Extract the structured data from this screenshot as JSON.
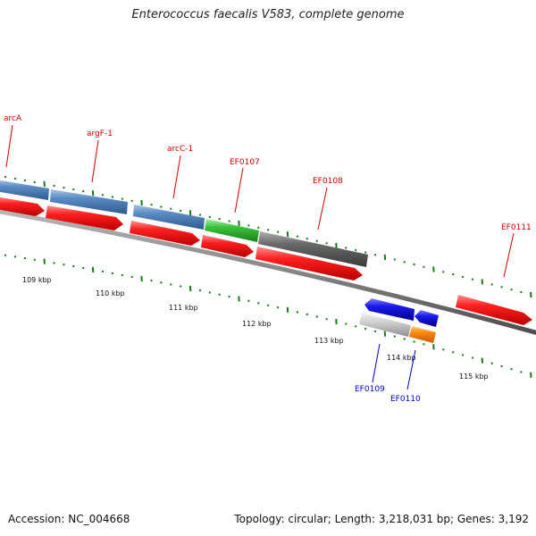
{
  "header": {
    "title": "Enterococcus faecalis V583, complete genome"
  },
  "footer": {
    "accession": "Accession: NC_004668",
    "topology": "Topology: circular; Length: 3,218,031 bp; Genes: 3,192"
  },
  "genes_top": [
    {
      "label": "arcA",
      "color": "#cc0000"
    },
    {
      "label": "argF-1",
      "color": "#cc0000"
    },
    {
      "label": "arcC-1",
      "color": "#cc0000"
    },
    {
      "label": "EF0107",
      "color": "#cc0000"
    },
    {
      "label": "EF0108",
      "color": "#cc0000"
    },
    {
      "label": "EF0111",
      "color": "#cc0000"
    }
  ],
  "genes_bottom": [
    {
      "label": "EF0109",
      "color": "#0000bb"
    },
    {
      "label": "EF0110",
      "color": "#0000bb"
    }
  ],
  "scale_labels": [
    "109 kbp",
    "110 kbp",
    "111 kbp",
    "112 kbp",
    "113 kbp",
    "114 kbp",
    "115 kbp"
  ],
  "colors": {
    "cds": "#ee1111",
    "steelblue_feature": "#4f81b8",
    "green_feature": "#33bb33",
    "gray_feature": "#666666",
    "blue_feature": "#1111dd",
    "lightgray_feature": "#c8c8c8",
    "orange_feature": "#ff8c10",
    "backbone": "#808080",
    "ticks": "#1a7a1a"
  }
}
